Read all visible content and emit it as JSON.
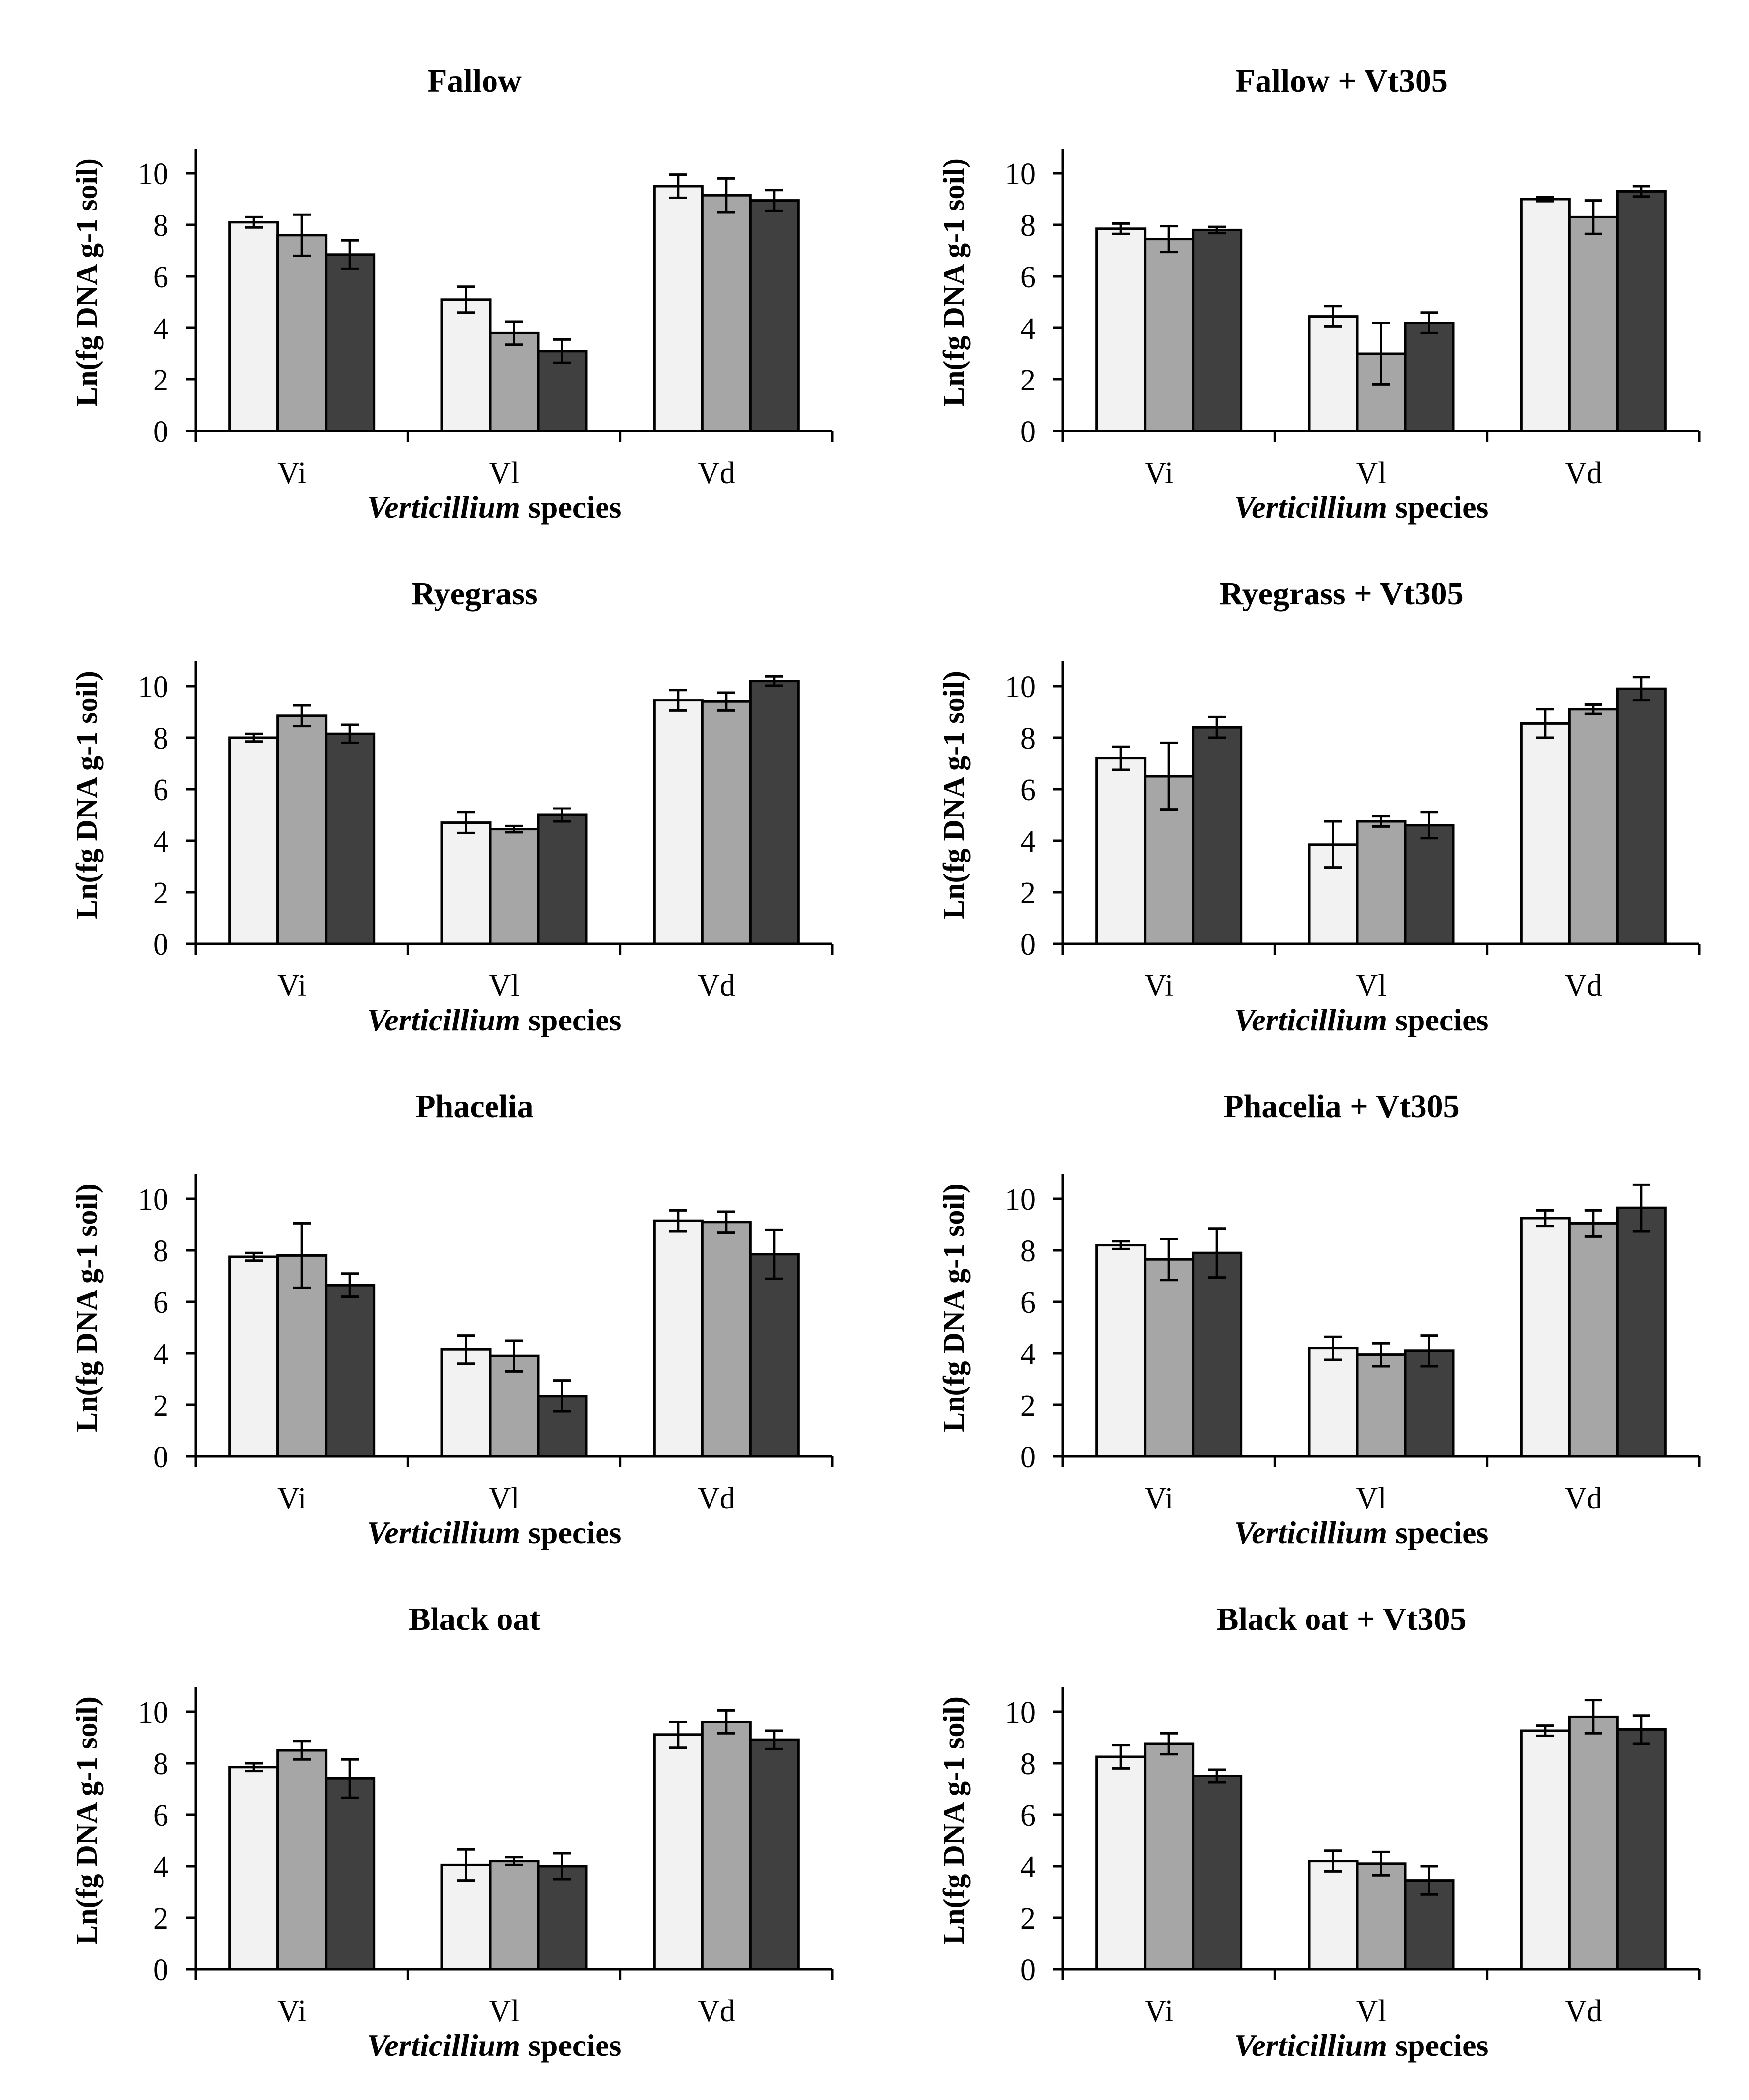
{
  "styles": {
    "series_colors": [
      "#f2f2f2",
      "#a6a6a6",
      "#404040"
    ],
    "bar_stroke": "#000000"
  },
  "chart_data": [
    {
      "type": "bar",
      "title": "Fallow",
      "ylabel": "Ln(fg DNA g-1 soil)",
      "xlabel_italic": "Verticillium",
      "xlabel_rest": " species",
      "categories": [
        "Vi",
        "Vl",
        "Vd"
      ],
      "ylim": [
        0,
        10
      ],
      "yticks": [
        0,
        2,
        4,
        6,
        8,
        10
      ],
      "series": [
        {
          "values": [
            8.1,
            5.1,
            9.5
          ],
          "errors": [
            0.2,
            0.5,
            0.45
          ]
        },
        {
          "values": [
            7.6,
            3.8,
            9.15
          ],
          "errors": [
            0.8,
            0.45,
            0.65
          ]
        },
        {
          "values": [
            6.85,
            3.1,
            8.95
          ],
          "errors": [
            0.55,
            0.45,
            0.4
          ]
        }
      ]
    },
    {
      "type": "bar",
      "title": "Fallow + Vt305",
      "ylabel": "Ln(fg DNA g-1 soil)",
      "xlabel_italic": "Verticillium",
      "xlabel_rest": " species",
      "categories": [
        "Vi",
        "Vl",
        "Vd"
      ],
      "ylim": [
        0,
        10
      ],
      "yticks": [
        0,
        2,
        4,
        6,
        8,
        10
      ],
      "series": [
        {
          "values": [
            7.85,
            4.45,
            9.0
          ],
          "errors": [
            0.2,
            0.4,
            0.08
          ]
        },
        {
          "values": [
            7.45,
            3.0,
            8.3
          ],
          "errors": [
            0.5,
            1.2,
            0.65
          ]
        },
        {
          "values": [
            7.8,
            4.2,
            9.3
          ],
          "errors": [
            0.12,
            0.4,
            0.2
          ]
        }
      ]
    },
    {
      "type": "bar",
      "title": "Ryegrass",
      "ylabel": "Ln(fg DNA g-1 soil)",
      "xlabel_italic": "Verticillium",
      "xlabel_rest": " species",
      "categories": [
        "Vi",
        "Vl",
        "Vd"
      ],
      "ylim": [
        0,
        10
      ],
      "yticks": [
        0,
        2,
        4,
        6,
        8,
        10
      ],
      "series": [
        {
          "values": [
            8.0,
            4.7,
            9.45
          ],
          "errors": [
            0.15,
            0.4,
            0.4
          ]
        },
        {
          "values": [
            8.85,
            4.45,
            9.4
          ],
          "errors": [
            0.4,
            0.12,
            0.35
          ]
        },
        {
          "values": [
            8.15,
            5.0,
            10.2
          ],
          "errors": [
            0.35,
            0.25,
            0.18
          ]
        }
      ]
    },
    {
      "type": "bar",
      "title": "Ryegrass + Vt305",
      "ylabel": "Ln(fg DNA g-1 soil)",
      "xlabel_italic": "Verticillium",
      "xlabel_rest": " species",
      "categories": [
        "Vi",
        "Vl",
        "Vd"
      ],
      "ylim": [
        0,
        10
      ],
      "yticks": [
        0,
        2,
        4,
        6,
        8,
        10
      ],
      "series": [
        {
          "values": [
            7.2,
            3.85,
            8.55
          ],
          "errors": [
            0.45,
            0.9,
            0.55
          ]
        },
        {
          "values": [
            6.5,
            4.75,
            9.1
          ],
          "errors": [
            1.3,
            0.2,
            0.18
          ]
        },
        {
          "values": [
            8.4,
            4.6,
            9.9
          ],
          "errors": [
            0.4,
            0.5,
            0.45
          ]
        }
      ]
    },
    {
      "type": "bar",
      "title": "Phacelia",
      "ylabel": "Ln(fg DNA g-1 soil)",
      "xlabel_italic": "Verticillium",
      "xlabel_rest": " species",
      "categories": [
        "Vi",
        "Vl",
        "Vd"
      ],
      "ylim": [
        0,
        10
      ],
      "yticks": [
        0,
        2,
        4,
        6,
        8,
        10
      ],
      "series": [
        {
          "values": [
            7.75,
            4.15,
            9.15
          ],
          "errors": [
            0.15,
            0.55,
            0.4
          ]
        },
        {
          "values": [
            7.8,
            3.9,
            9.1
          ],
          "errors": [
            1.25,
            0.6,
            0.4
          ]
        },
        {
          "values": [
            6.65,
            2.35,
            7.85
          ],
          "errors": [
            0.45,
            0.6,
            0.95
          ]
        }
      ]
    },
    {
      "type": "bar",
      "title": "Phacelia + Vt305",
      "ylabel": "Ln(fg DNA g-1 soil)",
      "xlabel_italic": "Verticillium",
      "xlabel_rest": " species",
      "categories": [
        "Vi",
        "Vl",
        "Vd"
      ],
      "ylim": [
        0,
        10
      ],
      "yticks": [
        0,
        2,
        4,
        6,
        8,
        10
      ],
      "series": [
        {
          "values": [
            8.2,
            4.2,
            9.25
          ],
          "errors": [
            0.15,
            0.45,
            0.3
          ]
        },
        {
          "values": [
            7.65,
            3.95,
            9.05
          ],
          "errors": [
            0.8,
            0.45,
            0.5
          ]
        },
        {
          "values": [
            7.9,
            4.1,
            9.65
          ],
          "errors": [
            0.95,
            0.6,
            0.9
          ]
        }
      ]
    },
    {
      "type": "bar",
      "title": "Black oat",
      "ylabel": "Ln(fg DNA g-1 soil)",
      "xlabel_italic": "Verticillium",
      "xlabel_rest": " species",
      "categories": [
        "Vi",
        "Vl",
        "Vd"
      ],
      "ylim": [
        0,
        10
      ],
      "yticks": [
        0,
        2,
        4,
        6,
        8,
        10
      ],
      "series": [
        {
          "values": [
            7.85,
            4.05,
            9.1
          ],
          "errors": [
            0.15,
            0.6,
            0.5
          ]
        },
        {
          "values": [
            8.5,
            4.2,
            9.6
          ],
          "errors": [
            0.35,
            0.15,
            0.45
          ]
        },
        {
          "values": [
            7.4,
            4.0,
            8.9
          ],
          "errors": [
            0.75,
            0.5,
            0.35
          ]
        }
      ]
    },
    {
      "type": "bar",
      "title": "Black oat + Vt305",
      "ylabel": "Ln(fg DNA g-1 soil)",
      "xlabel_italic": "Verticillium",
      "xlabel_rest": " species",
      "categories": [
        "Vi",
        "Vl",
        "Vd"
      ],
      "ylim": [
        0,
        10
      ],
      "yticks": [
        0,
        2,
        4,
        6,
        8,
        10
      ],
      "series": [
        {
          "values": [
            8.25,
            4.2,
            9.25
          ],
          "errors": [
            0.45,
            0.4,
            0.2
          ]
        },
        {
          "values": [
            8.75,
            4.1,
            9.8
          ],
          "errors": [
            0.4,
            0.45,
            0.65
          ]
        },
        {
          "values": [
            7.5,
            3.45,
            9.3
          ],
          "errors": [
            0.25,
            0.55,
            0.55
          ]
        }
      ]
    }
  ]
}
